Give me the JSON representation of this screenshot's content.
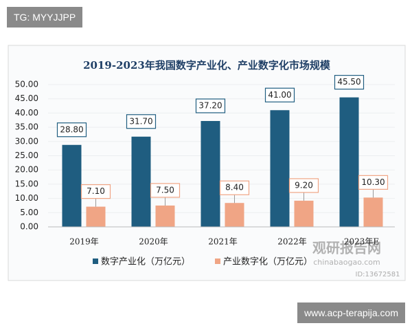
{
  "overlays": {
    "channel": "TG: MYYJJPP",
    "site": "www.acp-terapija.com"
  },
  "watermark": {
    "brand": "观研报告网",
    "domain": "chinabaogao.com",
    "id": "ID:13672581"
  },
  "chart_data": {
    "type": "bar",
    "title": "2019-2023年我国数字产业化、产业数字化市场规模",
    "categories": [
      "2019年",
      "2020年",
      "2021年",
      "2022年",
      "2023年E"
    ],
    "series": [
      {
        "name": "数字产业化（万亿元）",
        "color": "#1f5d80",
        "values": [
          28.8,
          31.7,
          37.2,
          41.0,
          45.5
        ],
        "value_labels": [
          "28.80",
          "31.70",
          "37.20",
          "41.00",
          "45.50"
        ]
      },
      {
        "name": "产业数字化（万亿元）",
        "color": "#f0a585",
        "values": [
          7.1,
          7.5,
          8.4,
          9.2,
          10.3
        ],
        "value_labels": [
          "7.10",
          "7.50",
          "8.40",
          "9.20",
          "10.30"
        ]
      }
    ],
    "ylim": [
      0,
      50
    ],
    "yticks": [
      {
        "value": 0,
        "label": "0.00"
      },
      {
        "value": 5,
        "label": "5.00"
      },
      {
        "value": 10,
        "label": "10.00"
      },
      {
        "value": 15,
        "label": "15.00"
      },
      {
        "value": 20,
        "label": "20.00"
      },
      {
        "value": 25,
        "label": "25.00"
      },
      {
        "value": 30,
        "label": "30.00"
      },
      {
        "value": 35,
        "label": "35.00"
      },
      {
        "value": 40,
        "label": "40.00"
      },
      {
        "value": 45,
        "label": "45.00"
      },
      {
        "value": 50,
        "label": "50.00"
      }
    ],
    "grid": true,
    "legend": "bottom"
  }
}
